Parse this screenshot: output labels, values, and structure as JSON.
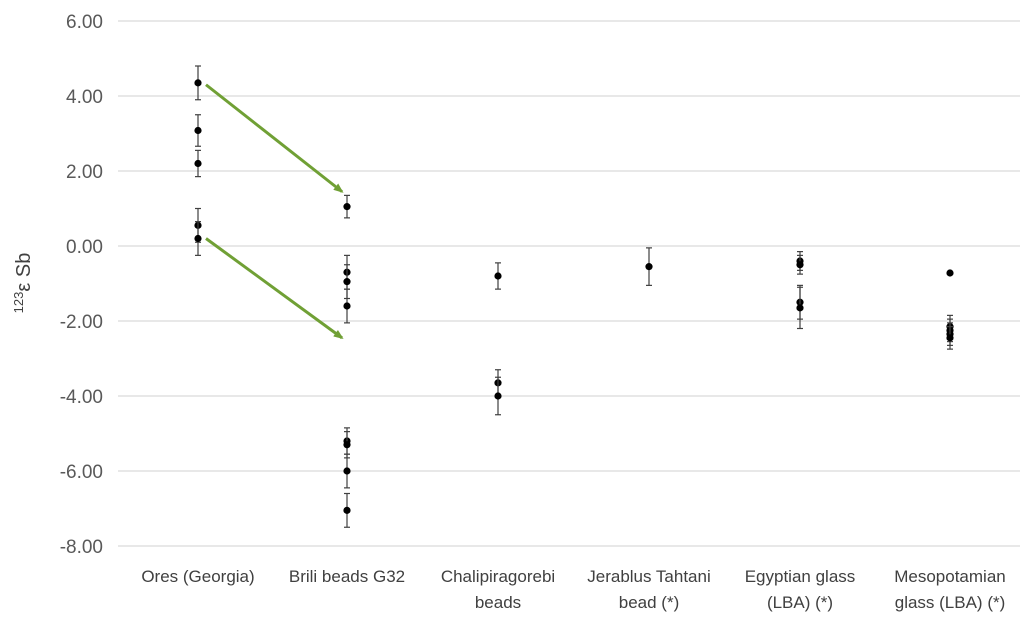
{
  "chart_data": {
    "type": "scatter",
    "title": "",
    "xlabel": "",
    "ylabel": {
      "superscript": "123",
      "text": "ε Sb"
    },
    "ylim": [
      -8,
      6
    ],
    "yticks": [
      "6.00",
      "4.00",
      "2.00",
      "0.00",
      "-2.00",
      "-4.00",
      "-6.00",
      "-8.00"
    ],
    "grid": true,
    "legend": "none",
    "categories": [
      [
        "Ores (Georgia)"
      ],
      [
        "Brili beads G32"
      ],
      [
        "Chalipiragorebi",
        "beads"
      ],
      [
        "Jerablus Tahtani",
        "bead (*)"
      ],
      [
        "Egyptian glass",
        "(LBA) (*)"
      ],
      [
        "Mesopotamian",
        "glass (LBA) (*)"
      ]
    ],
    "series": [
      {
        "category_index": 0,
        "points": [
          {
            "y": 4.35,
            "err": 0.45
          },
          {
            "y": 3.08,
            "err": 0.42
          },
          {
            "y": 2.2,
            "err": 0.35
          },
          {
            "y": 0.55,
            "err": 0.45
          },
          {
            "y": 0.2,
            "err": 0.45
          }
        ]
      },
      {
        "category_index": 1,
        "points": [
          {
            "y": 1.05,
            "err": 0.3
          },
          {
            "y": -0.7,
            "err": 0.45
          },
          {
            "y": -0.95,
            "err": 0.45
          },
          {
            "y": -1.6,
            "err": 0.45
          },
          {
            "y": -5.2,
            "err": 0.35
          },
          {
            "y": -5.3,
            "err": 0.35
          },
          {
            "y": -6.0,
            "err": 0.45
          },
          {
            "y": -7.05,
            "err": 0.45
          }
        ]
      },
      {
        "category_index": 2,
        "points": [
          {
            "y": -0.8,
            "err": 0.35
          },
          {
            "y": -3.65,
            "err": 0.35
          },
          {
            "y": -4.0,
            "err": 0.5
          }
        ]
      },
      {
        "category_index": 3,
        "points": [
          {
            "y": -0.55,
            "err": 0.5
          }
        ]
      },
      {
        "category_index": 4,
        "points": [
          {
            "y": -0.4,
            "err": 0.25
          },
          {
            "y": -0.5,
            "err": 0.25
          },
          {
            "y": -1.5,
            "err": 0.45
          },
          {
            "y": -1.65,
            "err": 0.55
          }
        ]
      },
      {
        "category_index": 5,
        "points": [
          {
            "y": -0.72,
            "err": 0
          },
          {
            "y": -2.15,
            "err": 0.3
          },
          {
            "y": -2.25,
            "err": 0.3
          },
          {
            "y": -2.35,
            "err": 0.3
          },
          {
            "y": -2.45,
            "err": 0.3
          }
        ]
      }
    ],
    "arrows": [
      {
        "from_category": 0,
        "from_y": 4.3,
        "to_category": 1,
        "to_y": 1.45
      },
      {
        "from_category": 0,
        "from_y": 0.2,
        "to_category": 1,
        "to_y": -2.45
      }
    ],
    "colors": {
      "marker": "#000000",
      "errorbar": "#404040",
      "grid": "#d9d9d9",
      "arrow": "#70a035"
    }
  }
}
